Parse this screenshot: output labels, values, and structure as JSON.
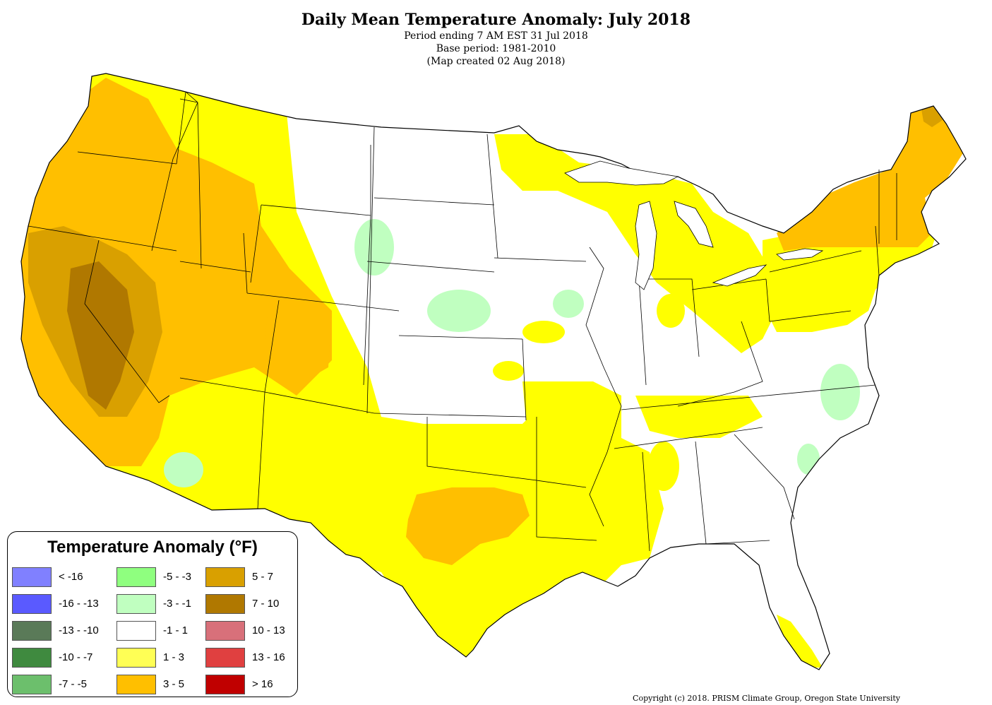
{
  "header": {
    "title": "Daily Mean Temperature Anomaly: July 2018",
    "period": "Period ending 7 AM EST 31 Jul 2018",
    "base": "Base period: 1981-2010",
    "created": "(Map created 02 Aug 2018)"
  },
  "legend": {
    "title": "Temperature Anomaly (°F)",
    "items": [
      {
        "label": "< -16",
        "color": "#8080ff"
      },
      {
        "label": "-16 - -13",
        "color": "#5a5aff"
      },
      {
        "label": "-13 - -10",
        "color": "#5a7a58"
      },
      {
        "label": "-10 - -7",
        "color": "#3f8a3f"
      },
      {
        "label": "-7 - -5",
        "color": "#6cbf6c"
      },
      {
        "label": "-5 - -3",
        "color": "#8fff7f"
      },
      {
        "label": "-3 - -1",
        "color": "#c0ffc0"
      },
      {
        "label": "-1 - 1",
        "color": "#ffffff"
      },
      {
        "label": "1 - 3",
        "color": "#ffff55"
      },
      {
        "label": "3 - 5",
        "color": "#ffbf00"
      },
      {
        "label": "5 - 7",
        "color": "#d9a000"
      },
      {
        "label": "7 - 10",
        "color": "#b07800"
      },
      {
        "label": "10 - 13",
        "color": "#d8707a"
      },
      {
        "label": "13 - 16",
        "color": "#e04040"
      },
      {
        "label": "> 16",
        "color": "#c00000"
      }
    ]
  },
  "map_colors": {
    "yellow": "#ffff00",
    "orange": "#ffbf00",
    "dark_orange": "#d9a000",
    "brown": "#b07800",
    "light_green": "#c0ffc0",
    "white": "#ffffff"
  },
  "copyright": "Copyright (c) 2018. PRISM Climate Group, Oregon State University"
}
